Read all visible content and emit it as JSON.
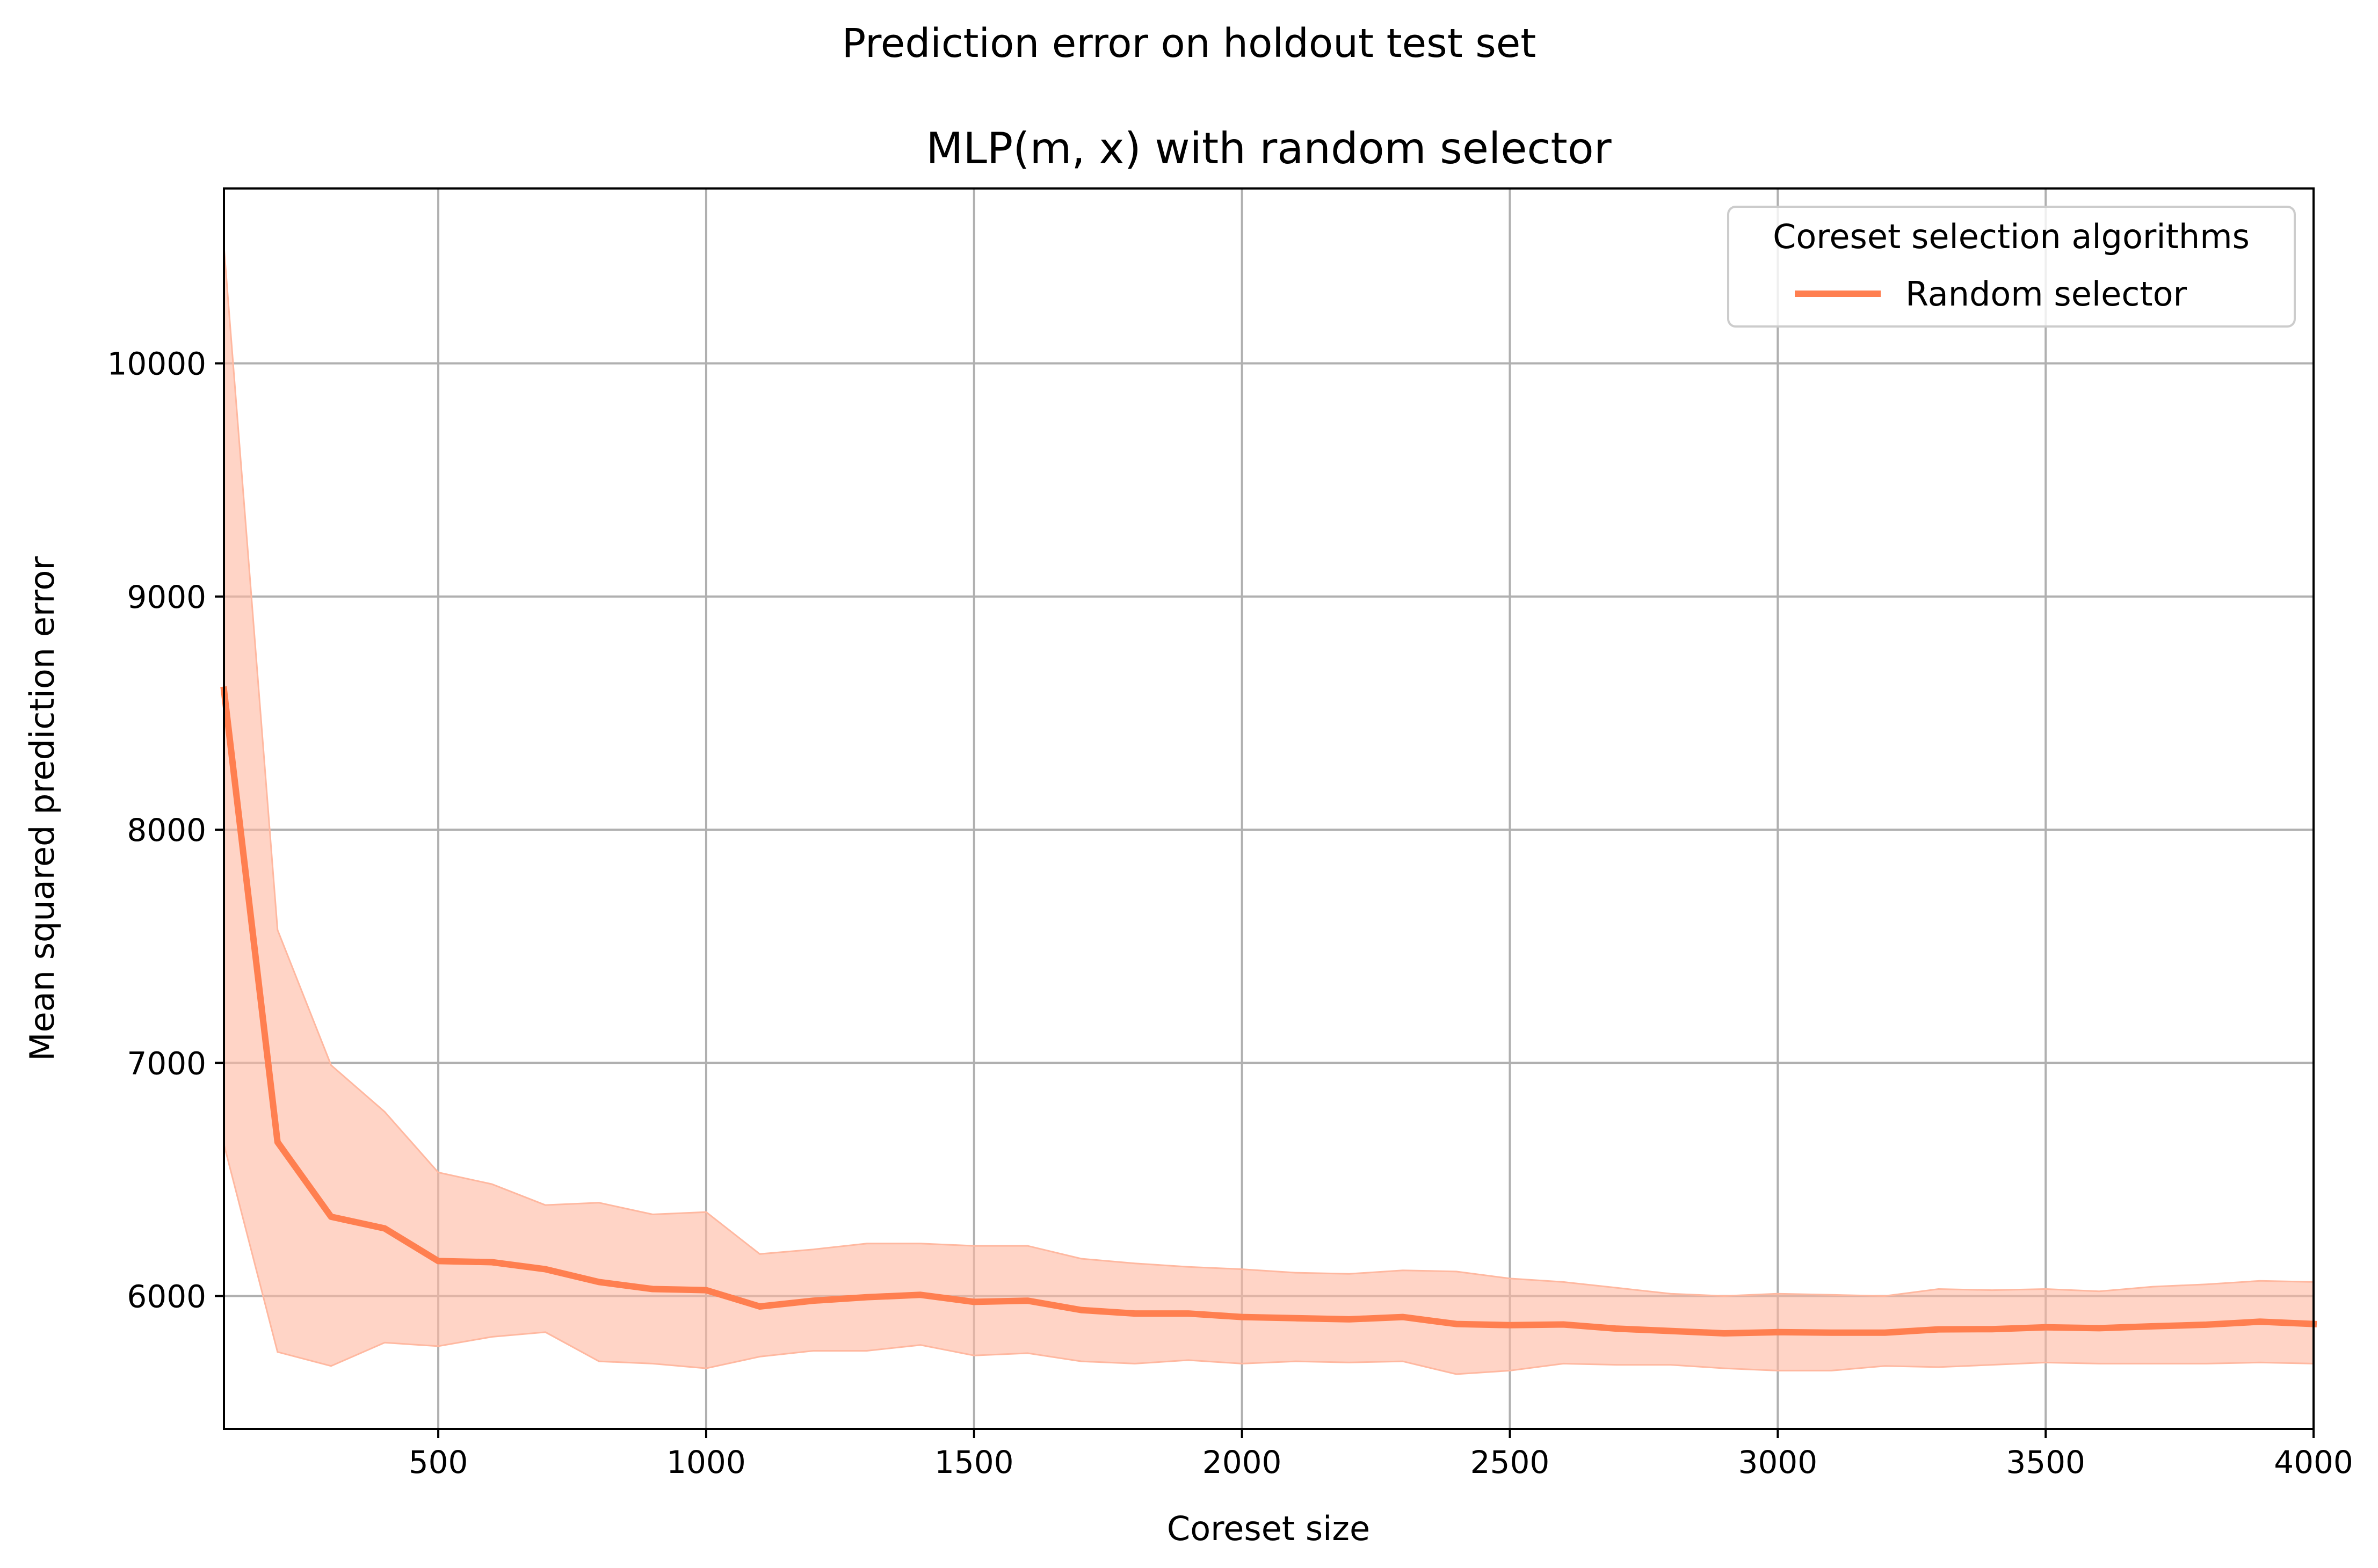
{
  "figure": {
    "suptitle": "Prediction error on holdout test set"
  },
  "chart_data": {
    "type": "line",
    "title": "MLP(m, x) with random selector",
    "xlabel": "Coreset size",
    "ylabel": "Mean squared prediction error",
    "xlim": [
      100,
      4000
    ],
    "ylim": [
      5430,
      10750
    ],
    "xticks": [
      500,
      1000,
      1500,
      2000,
      2500,
      3000,
      3500,
      4000
    ],
    "yticks": [
      6000,
      7000,
      8000,
      9000,
      10000
    ],
    "grid": true,
    "legend": {
      "title": "Coreset selection algorithms",
      "placement": "top-right"
    },
    "series": [
      {
        "name": "Random selector",
        "color": "#ff7f50",
        "band_color": "#ffb8a0",
        "x": [
          100,
          200,
          300,
          400,
          500,
          600,
          700,
          800,
          900,
          1000,
          1100,
          1200,
          1300,
          1400,
          1500,
          1600,
          1700,
          1800,
          1900,
          2000,
          2100,
          2200,
          2300,
          2400,
          2500,
          2600,
          2700,
          2800,
          2900,
          3000,
          3100,
          3200,
          3300,
          3400,
          3500,
          3600,
          3700,
          3800,
          3900,
          4000
        ],
        "y": [
          8600,
          6660,
          6340,
          6290,
          6150,
          6145,
          6115,
          6060,
          6030,
          6025,
          5955,
          5980,
          5995,
          6005,
          5975,
          5980,
          5940,
          5925,
          5925,
          5910,
          5905,
          5900,
          5910,
          5880,
          5875,
          5878,
          5860,
          5850,
          5840,
          5845,
          5843,
          5843,
          5857,
          5858,
          5866,
          5862,
          5870,
          5877,
          5890,
          5880
        ],
        "upper": [
          10500,
          7570,
          6990,
          6790,
          6530,
          6480,
          6390,
          6400,
          6350,
          6360,
          6180,
          6200,
          6225,
          6225,
          6215,
          6215,
          6160,
          6140,
          6125,
          6115,
          6100,
          6095,
          6110,
          6105,
          6075,
          6060,
          6035,
          6010,
          6000,
          6010,
          6005,
          6000,
          6030,
          6025,
          6030,
          6020,
          6040,
          6050,
          6065,
          6060
        ],
        "lower": [
          6650,
          5760,
          5700,
          5800,
          5785,
          5825,
          5845,
          5720,
          5710,
          5690,
          5740,
          5765,
          5765,
          5790,
          5745,
          5755,
          5720,
          5710,
          5725,
          5710,
          5720,
          5715,
          5720,
          5665,
          5680,
          5710,
          5705,
          5705,
          5690,
          5680,
          5680,
          5700,
          5695,
          5705,
          5715,
          5710,
          5710,
          5710,
          5715,
          5710
        ]
      }
    ]
  }
}
